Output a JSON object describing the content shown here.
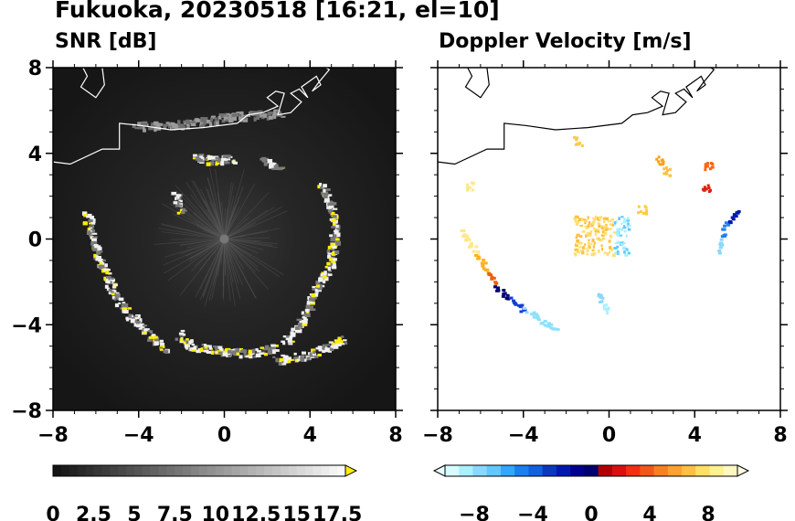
{
  "figure": {
    "title": "Fukuoka, 20230518 [16:21, el=10]"
  },
  "chart_data": [
    {
      "type": "heatmap",
      "title": "SNR [dB]",
      "variable": "SNR",
      "xlim": [
        -8,
        8
      ],
      "ylim": [
        -8,
        8
      ],
      "xticks": [
        "−8",
        "−4",
        "0",
        "4",
        "8"
      ],
      "yticks": [
        "8",
        "4",
        "0",
        "−4",
        "−8"
      ],
      "colorbar": {
        "ticks": [
          "0",
          "2.5",
          "5",
          "7.5",
          "10",
          "12.5",
          "15",
          "17.5"
        ],
        "range": [
          0,
          18
        ],
        "extend": "max",
        "colormap": "grayscale-to-yellow"
      },
      "colors": {
        "background": "#1c1c1c",
        "echo_low": "#7a7a7a",
        "echo_high": "#f0f0f0",
        "max": "#ffee00"
      }
    },
    {
      "type": "heatmap",
      "title": "Doppler Velocity [m/s]",
      "variable": "Doppler velocity",
      "xlim": [
        -8,
        8
      ],
      "ylim": [
        -8,
        8
      ],
      "xticks": [
        "−8",
        "−4",
        "0",
        "4",
        "8"
      ],
      "yticks": [],
      "colorbar": {
        "ticks": [
          "−8",
          "−4",
          "0",
          "4",
          "8"
        ],
        "range": [
          -10,
          10
        ],
        "extend": "both",
        "colormap": "blue-white-red-yellow (diverging)"
      },
      "colors": {
        "negative_strong": "#00007a",
        "negative_weak": "#aaf0ff",
        "positive_weak": "#ff8800",
        "positive_strong": "#fff27a"
      }
    }
  ]
}
